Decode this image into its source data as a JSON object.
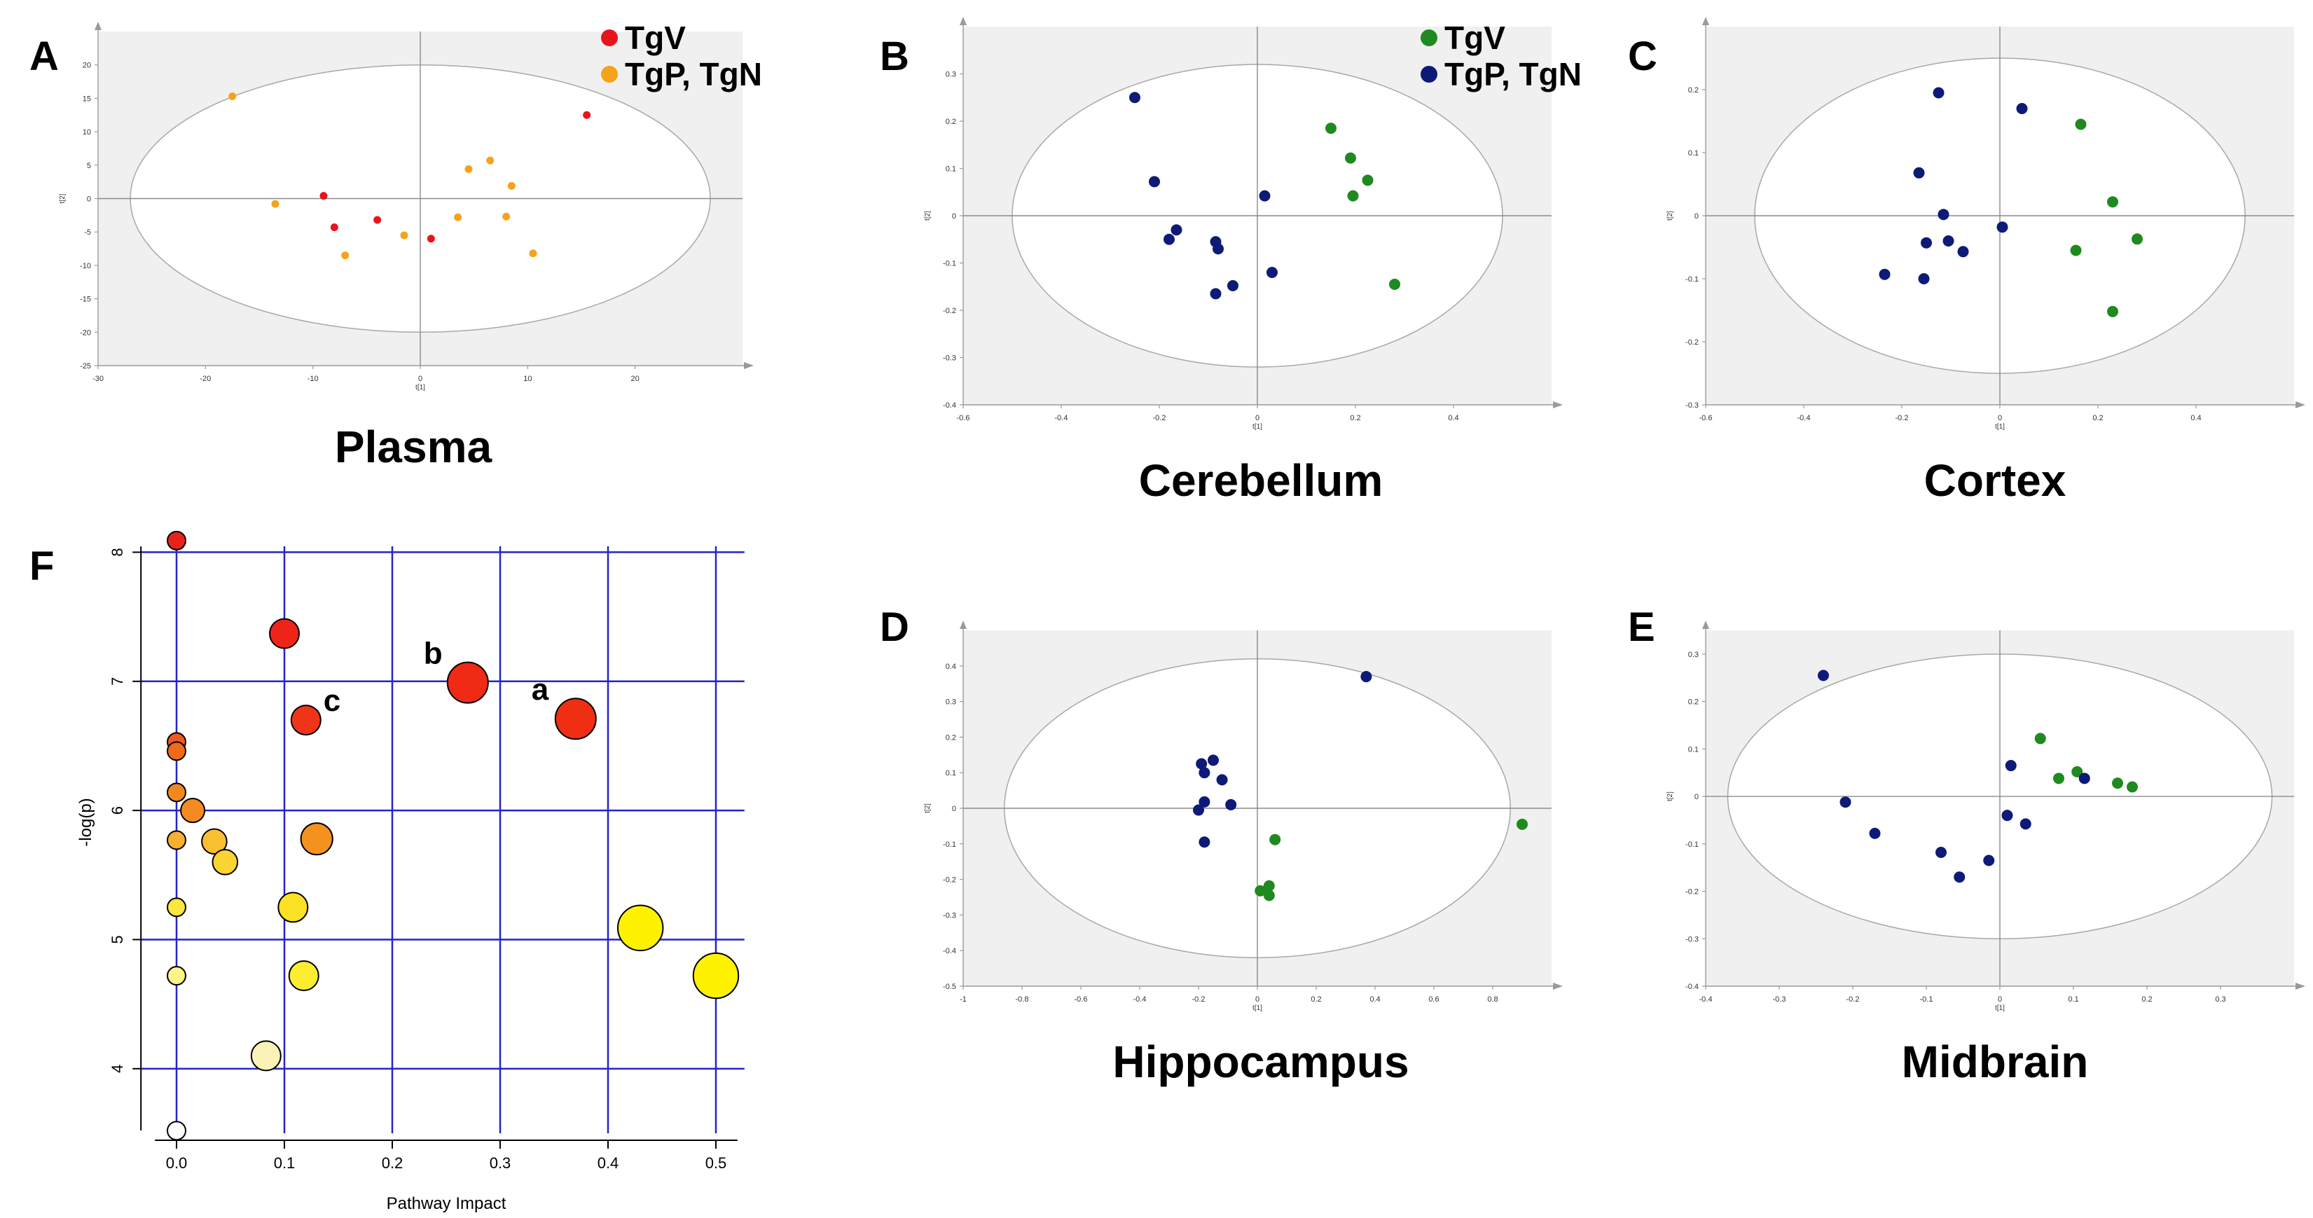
{
  "colors": {
    "tgv_plasma": "#e8141c",
    "tgpn_plasma": "#f5a31a",
    "tgv_brain": "#1f8a1f",
    "tgpn_brain": "#0d1a78",
    "pathway_grid": "#2424c8"
  },
  "chart_data": [
    {
      "id": "A",
      "type": "scatter",
      "title": "Plasma",
      "xlabel": "t[1]",
      "ylabel": "t[2]",
      "xlim": [
        -30,
        30
      ],
      "ylim": [
        -25,
        25
      ],
      "xticks": [
        "-30",
        "-20",
        "-10",
        "0",
        "10",
        "20"
      ],
      "yticks": [
        "20",
        "15",
        "10",
        "5",
        "0",
        "-5",
        "-10",
        "-15",
        "-20",
        "-25"
      ],
      "legend": [
        "TgV",
        "TgP, TgN"
      ],
      "ellipse": {
        "cx": 0,
        "cy": 0,
        "rx": 27,
        "ry": 20
      },
      "series": [
        {
          "name": "TgV",
          "points": [
            [
              -9,
              0.4
            ],
            [
              -8,
              -4.3
            ],
            [
              -4,
              -3.2
            ],
            [
              1,
              -6
            ],
            [
              15.5,
              12.5
            ]
          ]
        },
        {
          "name": "TgP, TgN",
          "points": [
            [
              -17.5,
              15.3
            ],
            [
              -13.5,
              -0.8
            ],
            [
              -7,
              -8.5
            ],
            [
              -1.5,
              -5.5
            ],
            [
              3.5,
              -2.8
            ],
            [
              4.5,
              4.4
            ],
            [
              6.5,
              5.7
            ],
            [
              8,
              -2.7
            ],
            [
              8.5,
              1.9
            ],
            [
              10.5,
              -8.2
            ]
          ]
        }
      ]
    },
    {
      "id": "B",
      "type": "scatter",
      "title": "Cerebellum",
      "xlabel": "t[1]",
      "ylabel": "t[2]",
      "xlim": [
        -0.6,
        0.6
      ],
      "ylim": [
        -0.4,
        0.4
      ],
      "xticks": [
        "-0.6",
        "-0.4",
        "-0.2",
        "0",
        "0.2",
        "0.4"
      ],
      "yticks": [
        "0.3",
        "0.2",
        "0.1",
        "0",
        "-0.1",
        "-0.2",
        "-0.3",
        "-0.4"
      ],
      "legend": [
        "TgV",
        "TgP, TgN"
      ],
      "ellipse": {
        "cx": 0,
        "cy": 0,
        "rx": 0.5,
        "ry": 0.32
      },
      "series": [
        {
          "name": "TgV",
          "points": [
            [
              0.15,
              0.185
            ],
            [
              0.19,
              0.122
            ],
            [
              0.225,
              0.075
            ],
            [
              0.195,
              0.042
            ],
            [
              0.28,
              -0.145
            ]
          ]
        },
        {
          "name": "TgP, TgN",
          "points": [
            [
              -0.25,
              0.25
            ],
            [
              -0.21,
              0.072
            ],
            [
              -0.165,
              -0.03
            ],
            [
              -0.18,
              -0.05
            ],
            [
              -0.085,
              -0.055
            ],
            [
              -0.08,
              -0.07
            ],
            [
              0.015,
              0.042
            ],
            [
              -0.05,
              -0.148
            ],
            [
              -0.085,
              -0.165
            ],
            [
              0.03,
              -0.12
            ]
          ]
        }
      ]
    },
    {
      "id": "C",
      "type": "scatter",
      "title": "Cortex",
      "xlabel": "t[1]",
      "ylabel": "t[2]",
      "xlim": [
        -0.6,
        0.6
      ],
      "ylim": [
        -0.3,
        0.3
      ],
      "xticks": [
        "-0.6",
        "-0.4",
        "-0.2",
        "0",
        "0.2",
        "0.4"
      ],
      "yticks": [
        "0.2",
        "0.1",
        "0",
        "-0.1",
        "-0.2",
        "-0.3"
      ],
      "legend": [],
      "ellipse": {
        "cx": 0,
        "cy": 0,
        "rx": 0.5,
        "ry": 0.25
      },
      "series": [
        {
          "name": "TgV",
          "points": [
            [
              0.165,
              0.145
            ],
            [
              0.23,
              0.022
            ],
            [
              0.28,
              -0.037
            ],
            [
              0.155,
              -0.055
            ],
            [
              0.23,
              -0.152
            ]
          ]
        },
        {
          "name": "TgP, TgN",
          "points": [
            [
              -0.125,
              0.195
            ],
            [
              0.045,
              0.17
            ],
            [
              -0.165,
              0.068
            ],
            [
              -0.115,
              0.002
            ],
            [
              -0.15,
              -0.043
            ],
            [
              -0.105,
              -0.04
            ],
            [
              -0.075,
              -0.057
            ],
            [
              0.005,
              -0.018
            ],
            [
              -0.235,
              -0.093
            ],
            [
              -0.155,
              -0.1
            ]
          ]
        }
      ]
    },
    {
      "id": "D",
      "type": "scatter",
      "title": "Hippocampus",
      "xlabel": "t[1]",
      "ylabel": "t[2]",
      "xlim": [
        -1,
        1
      ],
      "ylim": [
        -0.5,
        0.5
      ],
      "xticks": [
        "-1",
        "-0.8",
        "-0.6",
        "-0.4",
        "-0.2",
        "0",
        "0.2",
        "0.4",
        "0.6",
        "0.8"
      ],
      "yticks": [
        "0.4",
        "0.3",
        "0.2",
        "0.1",
        "0",
        "-0.1",
        "-0.2",
        "-0.3",
        "-0.4",
        "-0.5"
      ],
      "legend": [],
      "ellipse": {
        "cx": 0,
        "cy": 0,
        "rx": 0.86,
        "ry": 0.42
      },
      "series": [
        {
          "name": "TgV",
          "points": [
            [
              0.06,
              -0.088
            ],
            [
              0.9,
              -0.045
            ],
            [
              0.04,
              -0.218
            ],
            [
              0.01,
              -0.232
            ],
            [
              0.04,
              -0.245
            ]
          ]
        },
        {
          "name": "TgP, TgN",
          "points": [
            [
              0.37,
              0.37
            ],
            [
              -0.19,
              0.125
            ],
            [
              -0.15,
              0.135
            ],
            [
              -0.18,
              0.1
            ],
            [
              -0.12,
              0.08
            ],
            [
              -0.18,
              0.018
            ],
            [
              -0.2,
              -0.005
            ],
            [
              -0.09,
              0.01
            ],
            [
              -0.18,
              -0.095
            ]
          ]
        }
      ]
    },
    {
      "id": "E",
      "type": "scatter",
      "title": "Midbrain",
      "xlabel": "t[1]",
      "ylabel": "t[2]",
      "xlim": [
        -0.4,
        0.4
      ],
      "ylim": [
        -0.4,
        0.35
      ],
      "xticks": [
        "-0.4",
        "-0.3",
        "-0.2",
        "-0.1",
        "0",
        "0.1",
        "0.2",
        "0.3"
      ],
      "yticks": [
        "0.3",
        "0.2",
        "0.1",
        "0",
        "-0.1",
        "-0.2",
        "-0.3",
        "-0.4"
      ],
      "legend": [],
      "ellipse": {
        "cx": 0,
        "cy": 0,
        "rx": 0.37,
        "ry": 0.3
      },
      "series": [
        {
          "name": "TgV",
          "points": [
            [
              0.055,
              0.122
            ],
            [
              0.08,
              0.038
            ],
            [
              0.105,
              0.052
            ],
            [
              0.16,
              0.028
            ],
            [
              0.18,
              0.02
            ]
          ]
        },
        {
          "name": "TgP, TgN",
          "points": [
            [
              -0.24,
              0.255
            ],
            [
              -0.21,
              -0.012
            ],
            [
              -0.17,
              -0.078
            ],
            [
              -0.08,
              -0.118
            ],
            [
              -0.055,
              -0.17
            ],
            [
              -0.015,
              -0.135
            ],
            [
              0.015,
              0.065
            ],
            [
              0.01,
              -0.04
            ],
            [
              0.035,
              -0.058
            ],
            [
              0.115,
              0.038
            ]
          ]
        }
      ]
    },
    {
      "id": "F",
      "type": "scatter",
      "xlabel": "Pathway Impact",
      "ylabel": "-log(p)",
      "xlim": [
        0,
        0.5
      ],
      "ylim": [
        3.5,
        8.1
      ],
      "xticks": [
        "0.0",
        "0.1",
        "0.2",
        "0.3",
        "0.4",
        "0.5"
      ],
      "yticks": [
        "4",
        "5",
        "6",
        "7",
        "8"
      ],
      "points": [
        {
          "x": 0.0,
          "y": 8.09,
          "size": 1,
          "color": "#e8221a"
        },
        {
          "x": 0.1,
          "y": 7.37,
          "size": 2,
          "color": "#ee2418"
        },
        {
          "x": 0.27,
          "y": 6.99,
          "size": 3,
          "color": "#f02a14",
          "label": "b"
        },
        {
          "x": 0.37,
          "y": 6.71,
          "size": 3,
          "color": "#f02e14",
          "label": "a"
        },
        {
          "x": 0.12,
          "y": 6.7,
          "size": 2,
          "color": "#f03418",
          "label": "c"
        },
        {
          "x": 0.0,
          "y": 6.53,
          "size": 1,
          "color": "#f05a1c"
        },
        {
          "x": 0.0,
          "y": 6.46,
          "size": 1,
          "color": "#f06a1c"
        },
        {
          "x": 0.0,
          "y": 6.14,
          "size": 1,
          "color": "#f08820"
        },
        {
          "x": 0.015,
          "y": 6.0,
          "size": 1.5,
          "color": "#f48a22"
        },
        {
          "x": 0.13,
          "y": 5.78,
          "size": 2.2,
          "color": "#f4921e"
        },
        {
          "x": 0.0,
          "y": 5.77,
          "size": 1,
          "color": "#f8b030"
        },
        {
          "x": 0.035,
          "y": 5.76,
          "size": 1.6,
          "color": "#f8c030"
        },
        {
          "x": 0.045,
          "y": 5.6,
          "size": 1.6,
          "color": "#fad430"
        },
        {
          "x": 0.108,
          "y": 5.25,
          "size": 2,
          "color": "#fbe224"
        },
        {
          "x": 0.0,
          "y": 5.25,
          "size": 1,
          "color": "#fce640"
        },
        {
          "x": 0.43,
          "y": 5.09,
          "size": 3.4,
          "color": "#fff200"
        },
        {
          "x": 0.5,
          "y": 4.72,
          "size": 3.4,
          "color": "#fff200"
        },
        {
          "x": 0.118,
          "y": 4.72,
          "size": 2,
          "color": "#fbee30"
        },
        {
          "x": 0.0,
          "y": 4.72,
          "size": 1,
          "color": "#fdf48a"
        },
        {
          "x": 0.083,
          "y": 4.1,
          "size": 2,
          "color": "#fbf2b8"
        },
        {
          "x": 0.0,
          "y": 3.52,
          "size": 1,
          "color": "#ffffff"
        }
      ]
    }
  ]
}
